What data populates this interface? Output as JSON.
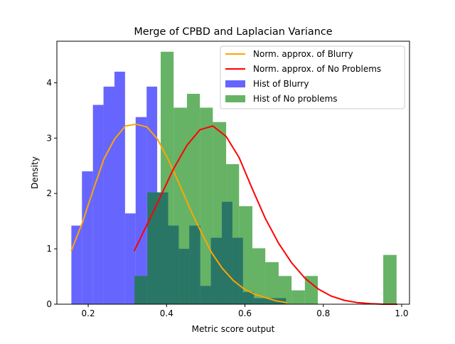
{
  "chart_data": {
    "type": "bar",
    "title": "Merge of CPBD and Laplacian Variance",
    "xlabel": "Metric score output",
    "ylabel": "Density",
    "xlim": [
      0.12,
      1.02
    ],
    "ylim": [
      0,
      4.75
    ],
    "xticks": [
      0.2,
      0.4,
      0.6,
      0.8,
      1.0
    ],
    "xtick_labels": [
      "0.2",
      "0.4",
      "0.6",
      "0.8",
      "1.0"
    ],
    "yticks": [
      0,
      1,
      2,
      3,
      4
    ],
    "ytick_labels": [
      "0",
      "1",
      "2",
      "3",
      "4"
    ],
    "grid": false,
    "legend_position": "top-right",
    "histograms": [
      {
        "name": "Hist of Blurry",
        "color": "#0000ff",
        "alpha": 0.6,
        "bins": [
          {
            "x0": 0.157,
            "x1": 0.184,
            "density": 1.42
          },
          {
            "x0": 0.184,
            "x1": 0.212,
            "density": 2.4
          },
          {
            "x0": 0.212,
            "x1": 0.239,
            "density": 3.6
          },
          {
            "x0": 0.239,
            "x1": 0.267,
            "density": 3.93
          },
          {
            "x0": 0.267,
            "x1": 0.294,
            "density": 4.2
          },
          {
            "x0": 0.294,
            "x1": 0.321,
            "density": 1.64
          },
          {
            "x0": 0.321,
            "x1": 0.349,
            "density": 3.38
          },
          {
            "x0": 0.349,
            "x1": 0.376,
            "density": 3.93
          },
          {
            "x0": 0.376,
            "x1": 0.404,
            "density": 2.02
          },
          {
            "x0": 0.404,
            "x1": 0.431,
            "density": 1.42
          },
          {
            "x0": 0.431,
            "x1": 0.458,
            "density": 1.0
          },
          {
            "x0": 0.458,
            "x1": 0.486,
            "density": 1.42
          },
          {
            "x0": 0.486,
            "x1": 0.513,
            "density": 0.33
          },
          {
            "x0": 0.513,
            "x1": 0.541,
            "density": 1.2
          },
          {
            "x0": 0.541,
            "x1": 0.568,
            "density": 1.85
          },
          {
            "x0": 0.568,
            "x1": 0.595,
            "density": 1.2
          },
          {
            "x0": 0.595,
            "x1": 0.623,
            "density": 0.22
          },
          {
            "x0": 0.623,
            "x1": 0.65,
            "density": 0.11
          },
          {
            "x0": 0.65,
            "x1": 0.678,
            "density": 0.11
          },
          {
            "x0": 0.678,
            "x1": 0.705,
            "density": 0.11
          }
        ]
      },
      {
        "name": "Hist of No problems",
        "color": "#008000",
        "alpha": 0.6,
        "bins": [
          {
            "x0": 0.318,
            "x1": 0.351,
            "density": 0.51
          },
          {
            "x0": 0.351,
            "x1": 0.385,
            "density": 2.02
          },
          {
            "x0": 0.385,
            "x1": 0.418,
            "density": 4.56
          },
          {
            "x0": 0.418,
            "x1": 0.452,
            "density": 3.55
          },
          {
            "x0": 0.452,
            "x1": 0.485,
            "density": 3.8
          },
          {
            "x0": 0.485,
            "x1": 0.518,
            "density": 3.55
          },
          {
            "x0": 0.518,
            "x1": 0.552,
            "density": 3.29
          },
          {
            "x0": 0.552,
            "x1": 0.585,
            "density": 2.53
          },
          {
            "x0": 0.585,
            "x1": 0.619,
            "density": 1.77
          },
          {
            "x0": 0.619,
            "x1": 0.652,
            "density": 1.01
          },
          {
            "x0": 0.652,
            "x1": 0.686,
            "density": 0.76
          },
          {
            "x0": 0.686,
            "x1": 0.719,
            "density": 0.51
          },
          {
            "x0": 0.719,
            "x1": 0.753,
            "density": 0.25
          },
          {
            "x0": 0.753,
            "x1": 0.786,
            "density": 0.51
          },
          {
            "x0": 0.786,
            "x1": 0.819,
            "density": 0.0
          },
          {
            "x0": 0.819,
            "x1": 0.853,
            "density": 0.0
          },
          {
            "x0": 0.853,
            "x1": 0.886,
            "density": 0.0
          },
          {
            "x0": 0.886,
            "x1": 0.92,
            "density": 0.0
          },
          {
            "x0": 0.92,
            "x1": 0.953,
            "density": 0.0
          },
          {
            "x0": 0.953,
            "x1": 0.987,
            "density": 0.89
          }
        ]
      }
    ],
    "lines": [
      {
        "name": "Norm. approx. of Blurry",
        "color": "#ffa500",
        "x": [
          0.157,
          0.185,
          0.212,
          0.24,
          0.267,
          0.295,
          0.322,
          0.35,
          0.377,
          0.405,
          0.432,
          0.46,
          0.487,
          0.515,
          0.542,
          0.57,
          0.597,
          0.625,
          0.652,
          0.68,
          0.705
        ],
        "y": [
          0.97,
          1.47,
          2.05,
          2.62,
          2.98,
          3.22,
          3.25,
          3.2,
          2.98,
          2.6,
          2.18,
          1.72,
          1.32,
          0.93,
          0.65,
          0.43,
          0.28,
          0.18,
          0.12,
          0.06,
          0.03
        ]
      },
      {
        "name": "Norm. approx. of No Problems",
        "color": "#ff0000",
        "x": [
          0.318,
          0.351,
          0.385,
          0.418,
          0.452,
          0.485,
          0.518,
          0.552,
          0.585,
          0.619,
          0.652,
          0.686,
          0.719,
          0.753,
          0.786,
          0.819,
          0.853,
          0.886,
          0.92,
          0.953,
          0.987
        ],
        "y": [
          0.97,
          1.45,
          1.95,
          2.45,
          2.87,
          3.15,
          3.22,
          3.03,
          2.65,
          2.08,
          1.55,
          1.1,
          0.75,
          0.47,
          0.28,
          0.15,
          0.07,
          0.03,
          0.01,
          0.0,
          0.0
        ]
      }
    ],
    "legend": [
      {
        "label": "Norm. approx. of Blurry",
        "kind": "line",
        "color": "#ffa500"
      },
      {
        "label": "Norm. approx. of No Problems",
        "kind": "line",
        "color": "#ff0000"
      },
      {
        "label": "Hist of Blurry",
        "kind": "patch",
        "color": "#0000ff"
      },
      {
        "label": "Hist of No problems",
        "kind": "patch",
        "color": "#008000"
      }
    ]
  }
}
